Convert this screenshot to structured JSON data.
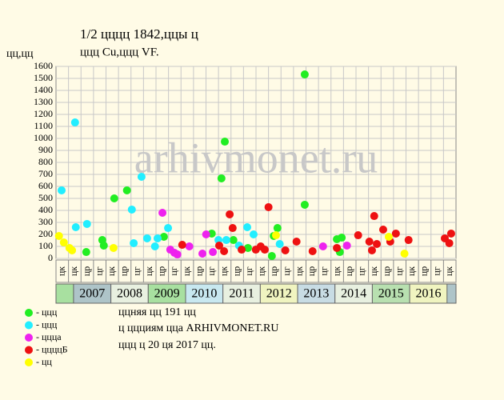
{
  "chart_data": {
    "type": "scatter",
    "title": "1/2 цццц 1842,ццы ц",
    "subtitle": "ццц Cu,ццц VF.",
    "y_label": "цц,цц",
    "watermark": "arhivmonet.ru",
    "xlim": [
      2006.53,
      2017.24
    ],
    "ylim": [
      0,
      1600
    ],
    "yticks": [
      0,
      100,
      200,
      300,
      400,
      500,
      600,
      700,
      800,
      900,
      1000,
      1100,
      1200,
      1300,
      1400,
      1500,
      1600
    ],
    "grid": true,
    "period_labels": [
      "цк",
      "цк",
      "цр",
      "цг",
      "цк",
      "цр",
      "цг",
      "цк",
      "цр",
      "цг",
      "цк",
      "цр",
      "цг",
      "цк",
      "цр",
      "цг",
      "цк",
      "цр",
      "цг",
      "цк",
      "цр",
      "цг",
      "цк",
      "цр",
      "цг",
      "цк",
      "цр",
      "цг",
      "цк",
      "цр",
      "цг",
      "цк"
    ],
    "years": [
      2007,
      2008,
      2009,
      2010,
      2011,
      2012,
      2013,
      2014,
      2015,
      2016
    ],
    "year_colors": [
      "#aec4c8",
      "#e8f0e0",
      "#a8e0a0",
      "#c8e8f0",
      "#e8f0e0",
      "#f0f4c0",
      "#c8dce4",
      "#e8f0e0",
      "#b8e0b0",
      "#f0f4c0"
    ],
    "series": [
      {
        "name": "- ццц",
        "color": "#22ee22",
        "x": [
          2007.34,
          2007.77,
          2007.81,
          2008.09,
          2008.43,
          2009.42,
          2010.7,
          2011.05,
          2010.96,
          2011.28,
          2011.67,
          2012.31,
          2012.36,
          2012.46,
          2013.19,
          2013.19,
          2014.05,
          2014.13,
          2014.18
        ],
        "values": [
          53,
          153,
          107,
          500,
          567,
          180,
          207,
          973,
          667,
          153,
          87,
          20,
          187,
          253,
          447,
          1533,
          160,
          53,
          173
        ]
      },
      {
        "name": "- ццц",
        "color": "#22eeff",
        "x": [
          2006.68,
          2007.04,
          2007.06,
          2007.36,
          2008.56,
          2008.61,
          2008.82,
          2008.97,
          2009.18,
          2009.25,
          2009.53,
          2010.88,
          2011.09,
          2011.43,
          2011.65,
          2011.82,
          2012.52
        ],
        "values": [
          567,
          1133,
          260,
          287,
          407,
          127,
          680,
          167,
          100,
          167,
          253,
          153,
          153,
          107,
          260,
          200,
          120
        ]
      },
      {
        "name": "- цццa",
        "color": "#ee22ee",
        "x": [
          2009.38,
          2009.59,
          2009.7,
          2009.78,
          2010.1,
          2010.45,
          2010.55,
          2010.73,
          2013.68,
          2014.32
        ],
        "values": [
          380,
          73,
          47,
          33,
          100,
          40,
          200,
          53,
          100,
          107
        ]
      },
      {
        "name": "- ццццБ",
        "color": "#ee1111",
        "x": [
          2009.91,
          2010.9,
          2011.03,
          2011.18,
          2011.26,
          2011.5,
          2011.88,
          2012.01,
          2012.12,
          2012.22,
          2012.67,
          2012.97,
          2013.4,
          2014.05,
          2014.62,
          2014.92,
          2014.99,
          2015.05,
          2015.12,
          2015.29,
          2015.48,
          2015.63,
          2015.97,
          2016.94,
          2017.06,
          2017.11
        ],
        "values": [
          113,
          107,
          60,
          367,
          253,
          73,
          73,
          100,
          73,
          427,
          67,
          140,
          60,
          87,
          193,
          140,
          67,
          353,
          120,
          240,
          140,
          207,
          153,
          167,
          127,
          207
        ]
      },
      {
        "name": "- цц",
        "color": "#ffff00",
        "x": [
          2006.61,
          2006.74,
          2006.89,
          2006.96,
          2008.07,
          2012.42,
          2015.44,
          2015.86
        ],
        "values": [
          187,
          133,
          87,
          67,
          87,
          193,
          180,
          40
        ]
      }
    ],
    "notes": [
      "ццняя цц 191 цц",
      "ц ццциям цца ARHIVMONET.RU",
      "ццц ц 20 ця 2017 цц."
    ]
  }
}
